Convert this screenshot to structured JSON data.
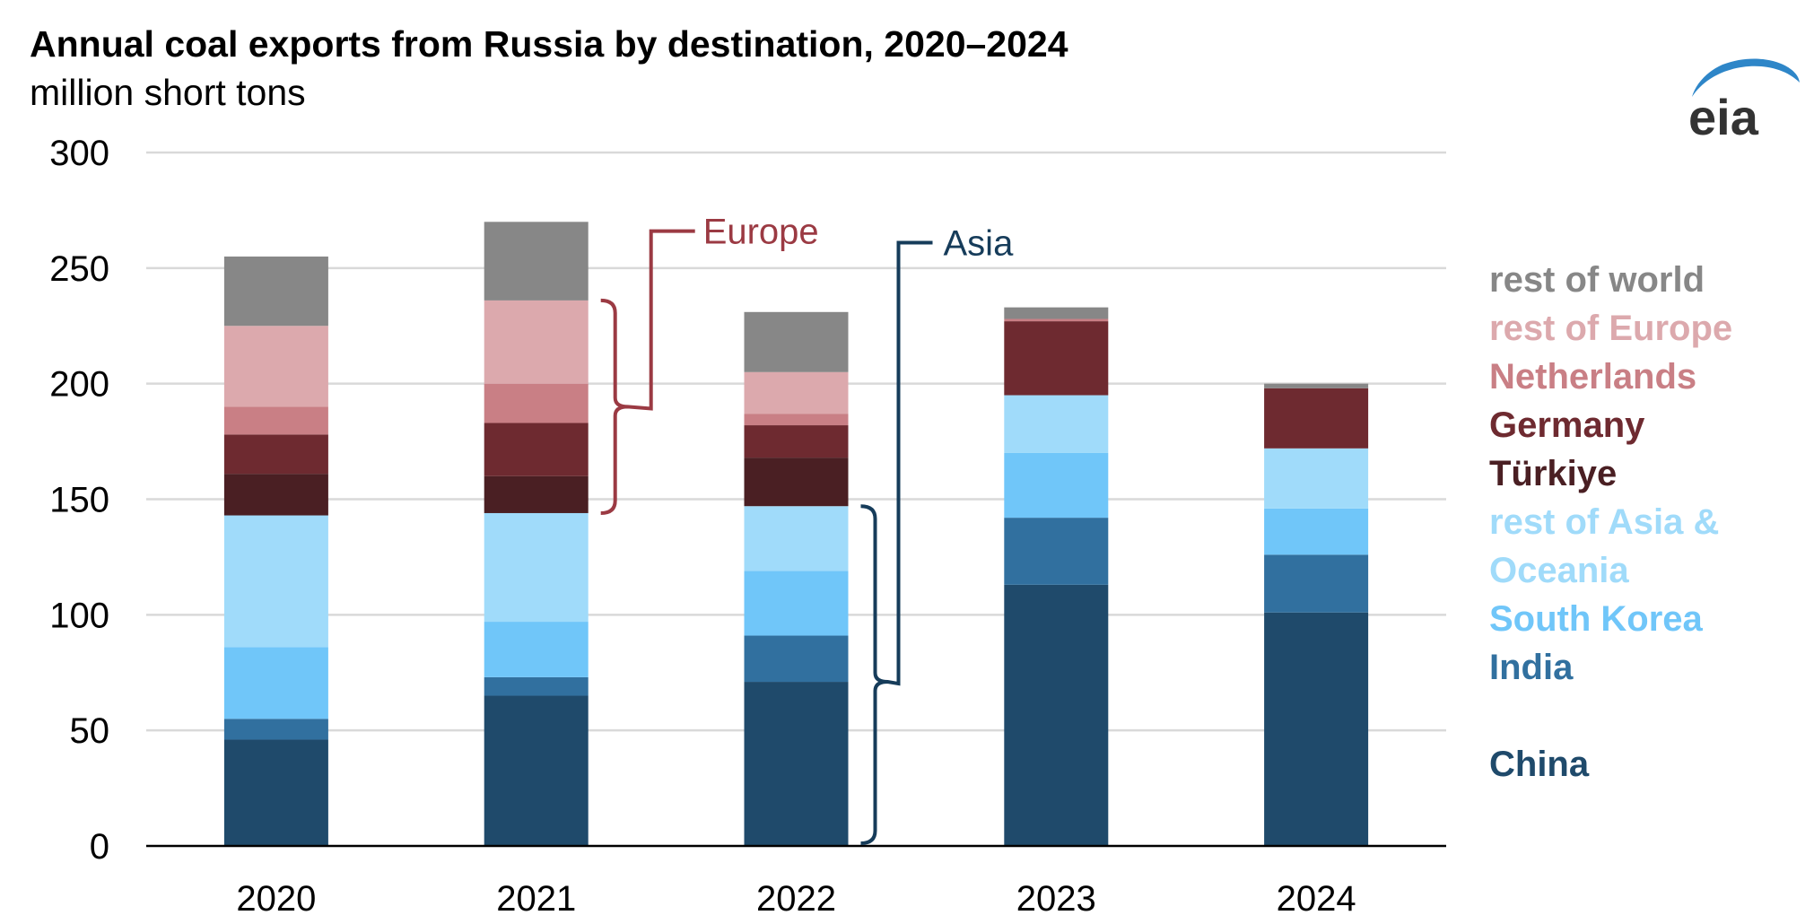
{
  "chart_data": {
    "type": "bar",
    "stacked": true,
    "title": "Annual coal exports from Russia by destination, 2020–2024",
    "subtitle": "million short tons",
    "categories": [
      "2020",
      "2021",
      "2022",
      "2023",
      "2024"
    ],
    "ylim": [
      0,
      300
    ],
    "yticks": [
      0,
      50,
      100,
      150,
      200,
      250,
      300
    ],
    "grid": true,
    "legend_position": "right",
    "series": [
      {
        "name": "China",
        "color": "#1f4a6b",
        "values": [
          46,
          65,
          71,
          113,
          101
        ]
      },
      {
        "name": "India",
        "color": "#31709f",
        "values": [
          9,
          8,
          20,
          29,
          25
        ]
      },
      {
        "name": "South Korea",
        "color": "#70c6f9",
        "values": [
          31,
          24,
          28,
          28,
          20
        ]
      },
      {
        "name": "rest of Asia & Oceania",
        "color": "#a0dbfa",
        "values": [
          57,
          47,
          28,
          25,
          26
        ]
      },
      {
        "name": "Türkiye",
        "color": "#4a1f23",
        "values": [
          18,
          16,
          21,
          0,
          0
        ]
      },
      {
        "name": "Germany",
        "color": "#6e2a30",
        "values": [
          17,
          23,
          14,
          32,
          26
        ]
      },
      {
        "name": "Netherlands",
        "color": "#c97f85",
        "values": [
          12,
          17,
          5,
          1,
          0
        ]
      },
      {
        "name": "rest of Europe",
        "color": "#dca9ad",
        "values": [
          35,
          36,
          18,
          0,
          0
        ]
      },
      {
        "name": "rest of world",
        "color": "#878787",
        "values": [
          30,
          34,
          26,
          5,
          2
        ]
      }
    ],
    "annotations": [
      {
        "label": "Europe",
        "color": "#9b3a43"
      },
      {
        "label": "Asia",
        "color": "#163c5a"
      }
    ]
  },
  "legend_labels": [
    {
      "lines": [
        "rest of world"
      ],
      "color": "#878787"
    },
    {
      "lines": [
        "rest of Europe"
      ],
      "color": "#dca9ad"
    },
    {
      "lines": [
        "Netherlands"
      ],
      "color": "#c97f85"
    },
    {
      "lines": [
        "Germany"
      ],
      "color": "#6e2a30"
    },
    {
      "lines": [
        "Türkiye"
      ],
      "color": "#4a1f23"
    },
    {
      "lines": [
        "rest of Asia &",
        "Oceania"
      ],
      "color": "#a0dbfa"
    },
    {
      "lines": [
        "South Korea"
      ],
      "color": "#70c6f9"
    },
    {
      "lines": [
        "India"
      ],
      "color": "#31709f"
    },
    {
      "lines": [
        "China"
      ],
      "color": "#1f4a6b"
    }
  ],
  "logo": {
    "text": "eia",
    "icon": "eia-logo-swoosh-icon",
    "color": "#333333",
    "swoosh_color": "#2e86c8"
  }
}
